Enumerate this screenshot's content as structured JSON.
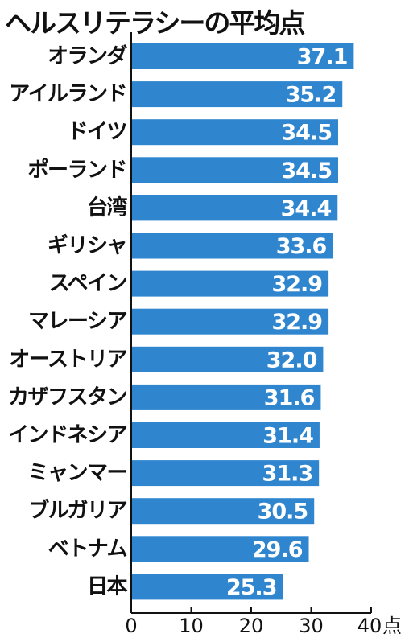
{
  "chart_data": {
    "type": "bar",
    "orientation": "horizontal",
    "title": "ヘルスリテラシーの平均点",
    "categories": [
      "オランダ",
      "アイルランド",
      "ドイツ",
      "ポーランド",
      "台湾",
      "ギリシャ",
      "スペイン",
      "マレーシア",
      "オーストリア",
      "カザフスタン",
      "インドネシア",
      "ミャンマー",
      "ブルガリア",
      "ベトナム",
      "日本"
    ],
    "values": [
      37.1,
      35.2,
      34.5,
      34.5,
      34.4,
      33.6,
      32.9,
      32.9,
      32.0,
      31.6,
      31.4,
      31.3,
      30.5,
      29.6,
      25.3
    ],
    "value_labels": [
      "37.1",
      "35.2",
      "34.5",
      "34.5",
      "34.4",
      "33.6",
      "32.9",
      "32.9",
      "32.0",
      "31.6",
      "31.4",
      "31.3",
      "30.5",
      "29.6",
      "25.3"
    ],
    "xlim": [
      0,
      40
    ],
    "x_ticks": [
      0,
      10,
      20,
      30,
      40
    ],
    "x_tick_labels": [
      "0",
      "10",
      "20",
      "30",
      "40"
    ],
    "x_unit": "点",
    "grid": false,
    "legend": "none",
    "bar_color": "#2f86cf"
  }
}
